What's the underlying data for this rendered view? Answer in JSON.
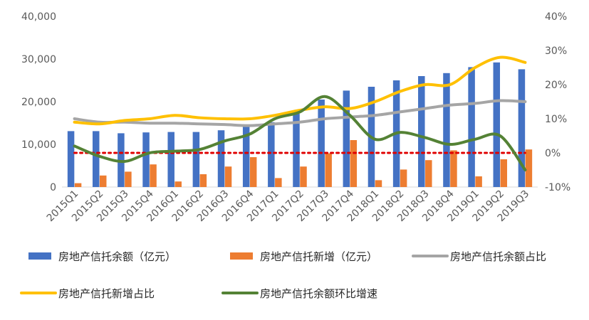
{
  "chart_data": {
    "type": "bar",
    "categories": [
      "2015Q1",
      "2015Q2",
      "2015Q3",
      "2015Q4",
      "2016Q1",
      "2016Q2",
      "2016Q3",
      "2016Q4",
      "2017Q1",
      "2017Q2",
      "2017Q3",
      "2017Q4",
      "2018Q1",
      "2018Q2",
      "2018Q3",
      "2018Q4",
      "2019Q1",
      "2019Q2",
      "2019Q3"
    ],
    "left_axis": {
      "ylim": [
        0,
        40000
      ],
      "ticks": [
        "0",
        "10,000",
        "20,000",
        "30,000",
        "40,000"
      ]
    },
    "right_axis": {
      "ylim": [
        -10,
        40
      ],
      "ticks": [
        "-10%",
        "0%",
        "10%",
        "20%",
        "30%",
        "40%"
      ]
    },
    "reference_line": {
      "value": 0,
      "axis": "right",
      "style": "dotted",
      "color": "#e00000"
    },
    "bar_series": [
      {
        "name": "房地产信托余额（亿元）",
        "color": "#4472c4",
        "values": [
          13100,
          13100,
          12600,
          12800,
          12900,
          12900,
          13300,
          14200,
          15200,
          17200,
          20500,
          22600,
          23500,
          25000,
          26000,
          26700,
          28100,
          29200,
          27600
        ]
      },
      {
        "name": "房地产信托新增（亿元）",
        "color": "#ed7d31",
        "values": [
          900,
          2700,
          3600,
          5300,
          1300,
          3000,
          4800,
          7000,
          2100,
          4800,
          7900,
          11000,
          1600,
          4100,
          6300,
          8600,
          2500,
          6500,
          8800
        ]
      }
    ],
    "line_series": [
      {
        "name": "房地产信托余额占比",
        "color": "#a5a5a5",
        "values": [
          10,
          9,
          9,
          8.7,
          8.7,
          8.5,
          8.3,
          8,
          8.5,
          9,
          10,
          10.5,
          11,
          12,
          13,
          14,
          14.5,
          15.3,
          15
        ]
      },
      {
        "name": "房地产信托新增占比",
        "color": "#ffc000",
        "values": [
          9,
          8.5,
          9.5,
          10,
          11,
          10.3,
          10,
          10,
          11,
          12.5,
          13.5,
          13,
          15,
          18,
          20,
          20,
          25,
          28,
          26.5
        ]
      },
      {
        "name": "房地产信托余额环比增速",
        "color": "#548235",
        "values": [
          2,
          -1,
          -2.5,
          0,
          0.5,
          1,
          3.5,
          5.5,
          10,
          12,
          16.5,
          11,
          4,
          6,
          4.5,
          2.5,
          4,
          5,
          -5
        ]
      }
    ]
  }
}
